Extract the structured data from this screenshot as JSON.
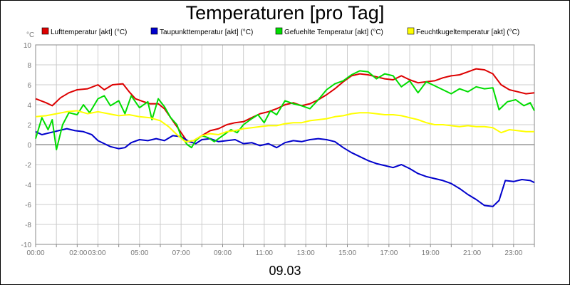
{
  "chart_data": {
    "type": "line",
    "title": "Temperaturen [pro Tag]",
    "y_unit": "°C",
    "date_label": "09.03",
    "ylim": [
      -10,
      10
    ],
    "y_ticks": [
      -10,
      -8,
      -6,
      -4,
      -2,
      0,
      2,
      4,
      6,
      8,
      10
    ],
    "x_range_hours": [
      0,
      24
    ],
    "x_tick_labels": [
      {
        "h": 0,
        "label": "00:00"
      },
      {
        "h": 2,
        "label": "02:00"
      },
      {
        "h": 3,
        "label": "03:00"
      },
      {
        "h": 5,
        "label": "05:00"
      },
      {
        "h": 7,
        "label": "07:00"
      },
      {
        "h": 9,
        "label": "09:00"
      },
      {
        "h": 11,
        "label": "11:00"
      },
      {
        "h": 13,
        "label": "13:00"
      },
      {
        "h": 15,
        "label": "15:00"
      },
      {
        "h": 17,
        "label": "17:00"
      },
      {
        "h": 19,
        "label": "19:00"
      },
      {
        "h": 21,
        "label": "21:00"
      },
      {
        "h": 23,
        "label": "23:00"
      }
    ],
    "grid": true,
    "legend_position": "top",
    "series": [
      {
        "name": "Lufttemperatur [akt] (°C)",
        "color": "#dd0000",
        "points": [
          [
            0,
            4.6
          ],
          [
            0.5,
            4.2
          ],
          [
            0.8,
            3.9
          ],
          [
            1.2,
            4.7
          ],
          [
            1.6,
            5.2
          ],
          [
            2.0,
            5.5
          ],
          [
            2.5,
            5.6
          ],
          [
            3.0,
            6.0
          ],
          [
            3.3,
            5.5
          ],
          [
            3.7,
            6.0
          ],
          [
            4.2,
            6.1
          ],
          [
            4.5,
            5.3
          ],
          [
            4.8,
            4.6
          ],
          [
            5.2,
            4.3
          ],
          [
            5.5,
            4.1
          ],
          [
            5.9,
            4.1
          ],
          [
            6.2,
            3.6
          ],
          [
            6.6,
            2.4
          ],
          [
            7.0,
            1.2
          ],
          [
            7.3,
            0.3
          ],
          [
            7.6,
            0.4
          ],
          [
            8.0,
            0.9
          ],
          [
            8.4,
            1.4
          ],
          [
            8.8,
            1.6
          ],
          [
            9.2,
            2.0
          ],
          [
            9.6,
            2.2
          ],
          [
            10.0,
            2.3
          ],
          [
            10.4,
            2.7
          ],
          [
            10.8,
            3.1
          ],
          [
            11.2,
            3.3
          ],
          [
            11.6,
            3.6
          ],
          [
            12.0,
            4.0
          ],
          [
            12.4,
            4.2
          ],
          [
            12.8,
            3.9
          ],
          [
            13.2,
            4.1
          ],
          [
            13.6,
            4.5
          ],
          [
            14.0,
            5.0
          ],
          [
            14.4,
            5.6
          ],
          [
            14.8,
            6.3
          ],
          [
            15.2,
            6.9
          ],
          [
            15.6,
            7.1
          ],
          [
            16.0,
            7.0
          ],
          [
            16.4,
            6.8
          ],
          [
            16.8,
            6.6
          ],
          [
            17.2,
            6.5
          ],
          [
            17.6,
            6.9
          ],
          [
            18.0,
            6.5
          ],
          [
            18.4,
            6.2
          ],
          [
            18.8,
            6.3
          ],
          [
            19.2,
            6.4
          ],
          [
            19.6,
            6.7
          ],
          [
            20.0,
            6.9
          ],
          [
            20.4,
            7.0
          ],
          [
            20.8,
            7.3
          ],
          [
            21.2,
            7.6
          ],
          [
            21.6,
            7.5
          ],
          [
            22.0,
            7.1
          ],
          [
            22.4,
            6.0
          ],
          [
            22.8,
            5.5
          ],
          [
            23.2,
            5.3
          ],
          [
            23.6,
            5.1
          ],
          [
            24.0,
            5.2
          ]
        ]
      },
      {
        "name": "Taupunkttemperatur [akt] (°C)",
        "color": "#0000cc",
        "points": [
          [
            0,
            1.3
          ],
          [
            0.3,
            1.0
          ],
          [
            0.7,
            1.2
          ],
          [
            1.1,
            1.4
          ],
          [
            1.5,
            1.6
          ],
          [
            1.9,
            1.4
          ],
          [
            2.3,
            1.3
          ],
          [
            2.7,
            1.0
          ],
          [
            3.0,
            0.4
          ],
          [
            3.3,
            0.1
          ],
          [
            3.6,
            -0.2
          ],
          [
            4.0,
            -0.4
          ],
          [
            4.3,
            -0.3
          ],
          [
            4.6,
            0.2
          ],
          [
            5.0,
            0.5
          ],
          [
            5.4,
            0.4
          ],
          [
            5.8,
            0.6
          ],
          [
            6.2,
            0.4
          ],
          [
            6.6,
            0.9
          ],
          [
            7.0,
            0.8
          ],
          [
            7.4,
            0.3
          ],
          [
            7.7,
            0.1
          ],
          [
            8.0,
            0.5
          ],
          [
            8.4,
            0.6
          ],
          [
            8.8,
            0.3
          ],
          [
            9.2,
            0.4
          ],
          [
            9.6,
            0.5
          ],
          [
            10.0,
            0.1
          ],
          [
            10.4,
            0.2
          ],
          [
            10.8,
            -0.1
          ],
          [
            11.2,
            0.1
          ],
          [
            11.6,
            -0.3
          ],
          [
            12.0,
            0.2
          ],
          [
            12.4,
            0.4
          ],
          [
            12.8,
            0.3
          ],
          [
            13.2,
            0.5
          ],
          [
            13.6,
            0.6
          ],
          [
            14.0,
            0.5
          ],
          [
            14.4,
            0.3
          ],
          [
            14.8,
            -0.3
          ],
          [
            15.2,
            -0.8
          ],
          [
            15.6,
            -1.2
          ],
          [
            16.0,
            -1.6
          ],
          [
            16.4,
            -1.9
          ],
          [
            16.8,
            -2.1
          ],
          [
            17.2,
            -2.3
          ],
          [
            17.6,
            -2.0
          ],
          [
            18.0,
            -2.4
          ],
          [
            18.4,
            -2.9
          ],
          [
            18.8,
            -3.2
          ],
          [
            19.2,
            -3.4
          ],
          [
            19.6,
            -3.6
          ],
          [
            20.0,
            -3.9
          ],
          [
            20.4,
            -4.4
          ],
          [
            20.8,
            -5.0
          ],
          [
            21.2,
            -5.5
          ],
          [
            21.6,
            -6.1
          ],
          [
            22.0,
            -6.2
          ],
          [
            22.3,
            -5.6
          ],
          [
            22.6,
            -3.6
          ],
          [
            23.0,
            -3.7
          ],
          [
            23.4,
            -3.5
          ],
          [
            23.8,
            -3.6
          ],
          [
            24.0,
            -3.8
          ]
        ]
      },
      {
        "name": "Gefuehlte Temperatur [akt] (°C)",
        "color": "#00dd00",
        "points": [
          [
            0,
            0.6
          ],
          [
            0.3,
            2.7
          ],
          [
            0.6,
            1.5
          ],
          [
            0.8,
            2.5
          ],
          [
            1.0,
            -0.5
          ],
          [
            1.3,
            2.0
          ],
          [
            1.6,
            3.2
          ],
          [
            2.0,
            3.0
          ],
          [
            2.3,
            4.0
          ],
          [
            2.6,
            3.2
          ],
          [
            3.0,
            4.6
          ],
          [
            3.3,
            4.9
          ],
          [
            3.6,
            3.9
          ],
          [
            4.0,
            4.4
          ],
          [
            4.3,
            3.1
          ],
          [
            4.6,
            4.9
          ],
          [
            5.0,
            3.7
          ],
          [
            5.4,
            4.3
          ],
          [
            5.6,
            2.5
          ],
          [
            5.9,
            4.6
          ],
          [
            6.2,
            3.8
          ],
          [
            6.5,
            2.7
          ],
          [
            6.8,
            2.0
          ],
          [
            7.0,
            0.8
          ],
          [
            7.3,
            0.0
          ],
          [
            7.5,
            -0.3
          ],
          [
            7.7,
            0.4
          ],
          [
            8.0,
            0.9
          ],
          [
            8.3,
            0.7
          ],
          [
            8.6,
            0.3
          ],
          [
            9.0,
            0.9
          ],
          [
            9.4,
            1.5
          ],
          [
            9.7,
            1.2
          ],
          [
            10.0,
            2.0
          ],
          [
            10.4,
            2.6
          ],
          [
            10.7,
            3.0
          ],
          [
            11.0,
            2.2
          ],
          [
            11.3,
            3.4
          ],
          [
            11.6,
            3.0
          ],
          [
            12.0,
            4.4
          ],
          [
            12.4,
            4.1
          ],
          [
            12.8,
            3.9
          ],
          [
            13.2,
            3.6
          ],
          [
            13.6,
            4.5
          ],
          [
            14.0,
            5.5
          ],
          [
            14.4,
            6.1
          ],
          [
            14.8,
            6.4
          ],
          [
            15.2,
            7.0
          ],
          [
            15.6,
            7.4
          ],
          [
            16.0,
            7.3
          ],
          [
            16.4,
            6.6
          ],
          [
            16.8,
            7.1
          ],
          [
            17.2,
            6.9
          ],
          [
            17.6,
            5.8
          ],
          [
            18.0,
            6.4
          ],
          [
            18.4,
            5.2
          ],
          [
            18.8,
            6.3
          ],
          [
            19.2,
            5.9
          ],
          [
            19.6,
            5.5
          ],
          [
            20.0,
            5.1
          ],
          [
            20.4,
            5.6
          ],
          [
            20.8,
            5.3
          ],
          [
            21.2,
            5.8
          ],
          [
            21.6,
            5.6
          ],
          [
            22.0,
            5.7
          ],
          [
            22.3,
            3.5
          ],
          [
            22.7,
            4.3
          ],
          [
            23.1,
            4.5
          ],
          [
            23.5,
            3.9
          ],
          [
            23.8,
            4.2
          ],
          [
            24.0,
            3.4
          ]
        ]
      },
      {
        "name": "Feuchtkugeltemperatur [akt] (°C)",
        "color": "#ffff00",
        "points": [
          [
            0,
            2.8
          ],
          [
            0.5,
            2.9
          ],
          [
            1.0,
            3.1
          ],
          [
            1.5,
            3.3
          ],
          [
            2.0,
            3.4
          ],
          [
            2.5,
            3.1
          ],
          [
            3.0,
            3.3
          ],
          [
            3.5,
            3.1
          ],
          [
            4.0,
            2.9
          ],
          [
            4.5,
            3.0
          ],
          [
            5.0,
            2.8
          ],
          [
            5.5,
            2.7
          ],
          [
            6.0,
            2.4
          ],
          [
            6.4,
            1.8
          ],
          [
            6.8,
            1.0
          ],
          [
            7.2,
            0.3
          ],
          [
            7.6,
            0.4
          ],
          [
            8.0,
            0.9
          ],
          [
            8.4,
            1.1
          ],
          [
            8.8,
            1.0
          ],
          [
            9.2,
            1.3
          ],
          [
            9.6,
            1.4
          ],
          [
            10.0,
            1.6
          ],
          [
            10.4,
            1.7
          ],
          [
            10.8,
            1.8
          ],
          [
            11.2,
            1.9
          ],
          [
            11.6,
            1.9
          ],
          [
            12.0,
            2.1
          ],
          [
            12.4,
            2.2
          ],
          [
            12.8,
            2.2
          ],
          [
            13.2,
            2.4
          ],
          [
            13.6,
            2.5
          ],
          [
            14.0,
            2.6
          ],
          [
            14.4,
            2.8
          ],
          [
            14.8,
            2.9
          ],
          [
            15.2,
            3.1
          ],
          [
            15.6,
            3.2
          ],
          [
            16.0,
            3.2
          ],
          [
            16.4,
            3.1
          ],
          [
            16.8,
            3.0
          ],
          [
            17.2,
            3.0
          ],
          [
            17.6,
            2.9
          ],
          [
            18.0,
            2.7
          ],
          [
            18.4,
            2.5
          ],
          [
            18.8,
            2.2
          ],
          [
            19.2,
            2.0
          ],
          [
            19.6,
            2.0
          ],
          [
            20.0,
            1.9
          ],
          [
            20.4,
            1.8
          ],
          [
            20.8,
            1.9
          ],
          [
            21.2,
            1.8
          ],
          [
            21.6,
            1.8
          ],
          [
            22.0,
            1.7
          ],
          [
            22.4,
            1.2
          ],
          [
            22.8,
            1.5
          ],
          [
            23.2,
            1.4
          ],
          [
            23.6,
            1.3
          ],
          [
            24.0,
            1.3
          ]
        ]
      }
    ]
  }
}
